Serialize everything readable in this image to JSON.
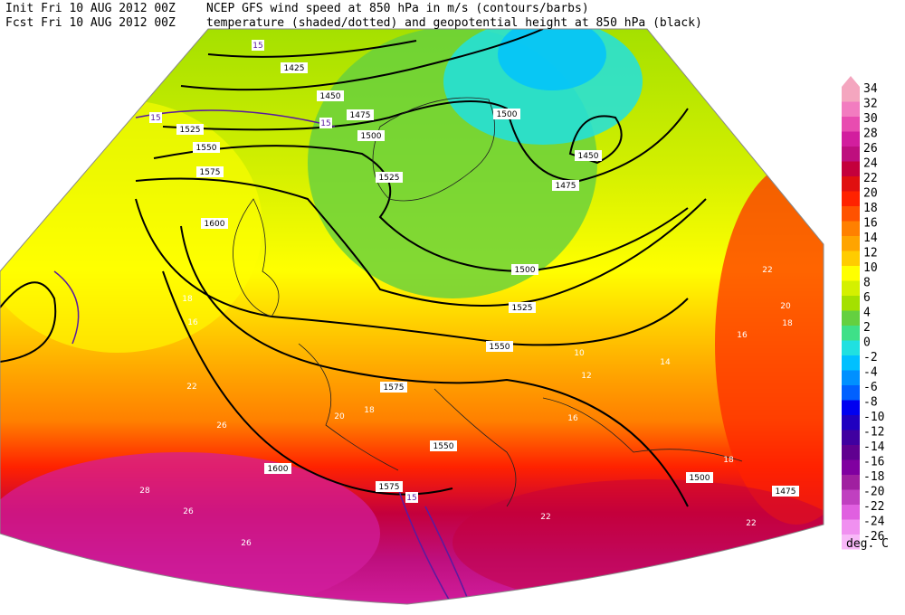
{
  "header": {
    "init": "Init  Fri 10 AUG 2012 00Z",
    "fcst": "Fcst Fri 10 AUG 2012 00Z",
    "title": "NCEP GFS wind speed at 850 hPa in m/s (contours/barbs)",
    "subtitle": "temperature (shaded/dotted) and geopotential height at 850 hPa (black)"
  },
  "colorbar": {
    "unit": "deg. C",
    "levels": [
      34,
      32,
      30,
      28,
      26,
      24,
      22,
      20,
      18,
      16,
      14,
      12,
      10,
      8,
      6,
      4,
      2,
      0,
      -2,
      -4,
      -6,
      -8,
      -10,
      -12,
      -14,
      -16,
      -18,
      -20,
      -22,
      -24,
      -26
    ],
    "colors": [
      "#f4a6bf",
      "#f27cc0",
      "#e84cb0",
      "#d21e9e",
      "#be0f7e",
      "#c4003c",
      "#e01010",
      "#ff2200",
      "#ff5200",
      "#ff8000",
      "#ffa400",
      "#ffcc00",
      "#ffff00",
      "#d4f000",
      "#a4e000",
      "#64d040",
      "#3ee088",
      "#20e0e0",
      "#00c0ff",
      "#0090ff",
      "#0060ff",
      "#0000f0",
      "#2000c0",
      "#4000a0",
      "#600090",
      "#8000a0",
      "#a020a0",
      "#c040c0",
      "#e060e0",
      "#f090f0",
      "#f8b8f8"
    ]
  },
  "height_labels": [
    1425,
    1450,
    1475,
    1500,
    1525,
    1550,
    1575,
    1600,
    1525,
    1500,
    1450,
    1475,
    1500,
    1525,
    1550,
    1575,
    1550,
    1600,
    1575,
    1500,
    1475
  ],
  "wind_labels": [
    15,
    15,
    15,
    15
  ],
  "temperature_labels": [
    22,
    26,
    20,
    18,
    16,
    12,
    10,
    16,
    18,
    22,
    26,
    28,
    26,
    22,
    18,
    16,
    18,
    20,
    22,
    14
  ]
}
